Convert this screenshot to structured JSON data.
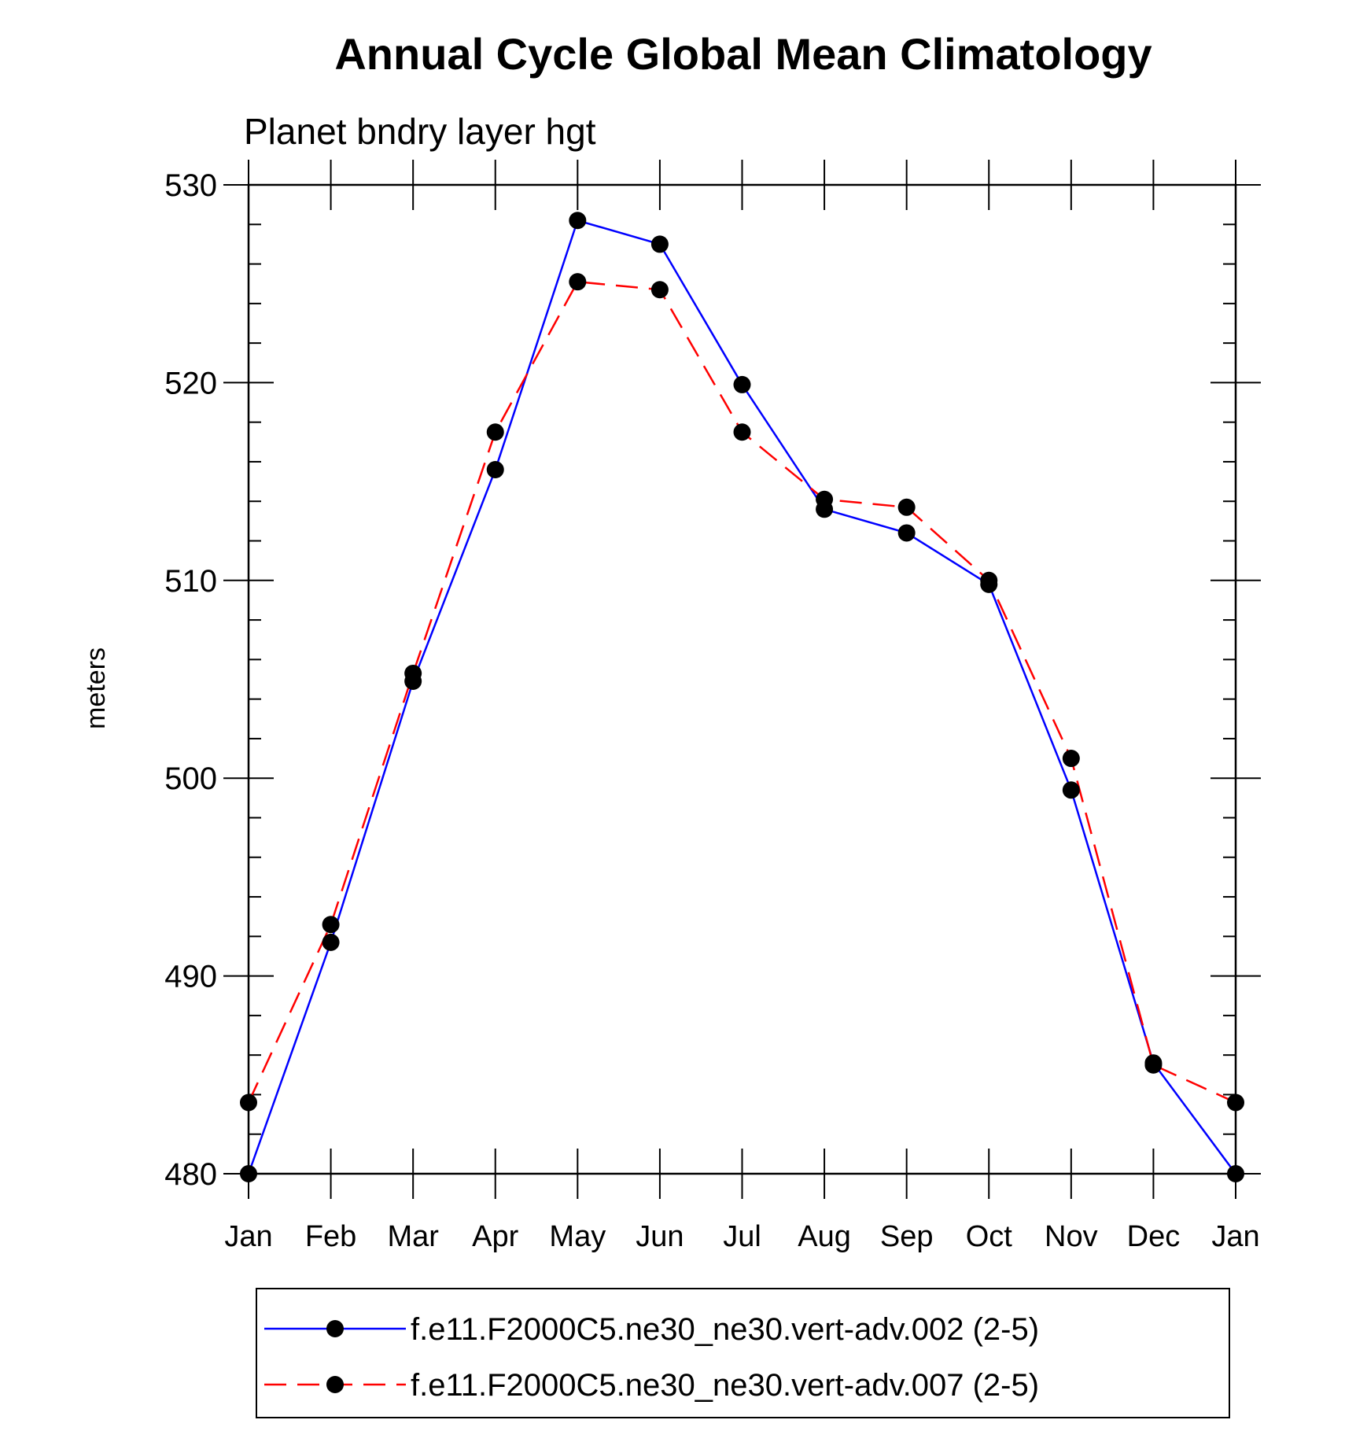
{
  "chart_data": {
    "type": "line",
    "title": "Annual Cycle Global Mean Climatology",
    "subtitle": "Planet bndry layer hgt",
    "ylabel": "meters",
    "xlabel": "",
    "ylim": [
      480,
      530
    ],
    "yticks": [
      480,
      490,
      500,
      510,
      520,
      530
    ],
    "categories": [
      "Jan",
      "Feb",
      "Mar",
      "Apr",
      "May",
      "Jun",
      "Jul",
      "Aug",
      "Sep",
      "Oct",
      "Nov",
      "Dec",
      "Jan"
    ],
    "grid": false,
    "legend_position": "bottom",
    "series": [
      {
        "name": "f.e11.F2000C5.ne30_ne30.vert-adv.002 (2-5)",
        "color": "#0000ff",
        "dash": "solid",
        "values": [
          480.0,
          491.7,
          504.9,
          515.6,
          528.2,
          527.0,
          519.9,
          513.6,
          512.4,
          509.8,
          499.4,
          485.6,
          480.0
        ]
      },
      {
        "name": "f.e11.F2000C5.ne30_ne30.vert-adv.007 (2-5)",
        "color": "#ff0000",
        "dash": "dashed",
        "values": [
          483.6,
          492.6,
          505.3,
          517.5,
          525.1,
          524.7,
          517.5,
          514.1,
          513.7,
          510.0,
          501.0,
          485.5,
          483.6
        ]
      }
    ]
  }
}
